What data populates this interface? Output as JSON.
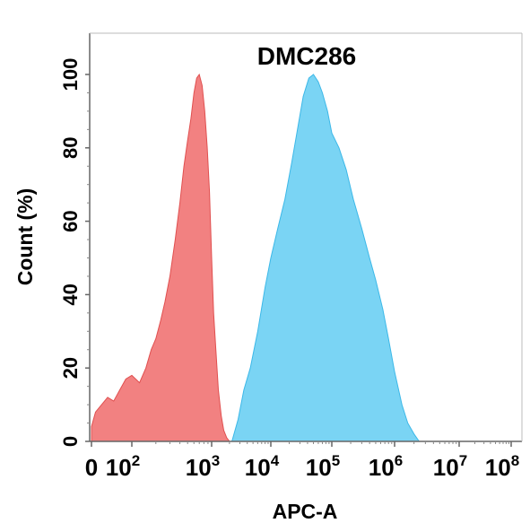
{
  "chart_data": {
    "type": "area",
    "title": "DMC286",
    "xlabel": "APC-A",
    "ylabel": "Count  (%)",
    "x_scale": "biexponential",
    "xlim": [
      0,
      100000000
    ],
    "ylim": [
      0,
      100
    ],
    "grid": false,
    "legend": "none",
    "x_ticks": [
      {
        "base": "0",
        "exp": ""
      },
      {
        "base": "10",
        "exp": "2"
      },
      {
        "base": "10",
        "exp": "3"
      },
      {
        "base": "10",
        "exp": "4"
      },
      {
        "base": "10",
        "exp": "5"
      },
      {
        "base": "10",
        "exp": "6"
      },
      {
        "base": "10",
        "exp": "7"
      },
      {
        "base": "10",
        "exp": "8"
      }
    ],
    "y_ticks": [
      "0",
      "20",
      "40",
      "60",
      "80",
      "100"
    ],
    "series": [
      {
        "color": "#F07070",
        "stroke": "#E05050",
        "points": [
          [
            0,
            4
          ],
          [
            10,
            8
          ],
          [
            25,
            10
          ],
          [
            40,
            12
          ],
          [
            55,
            11
          ],
          [
            70,
            14
          ],
          [
            85,
            17
          ],
          [
            100,
            18
          ],
          [
            125,
            16
          ],
          [
            150,
            20
          ],
          [
            175,
            25
          ],
          [
            200,
            28
          ],
          [
            230,
            33
          ],
          [
            260,
            38
          ],
          [
            300,
            45
          ],
          [
            350,
            55
          ],
          [
            400,
            65
          ],
          [
            450,
            75
          ],
          [
            500,
            82
          ],
          [
            550,
            88
          ],
          [
            600,
            95
          ],
          [
            650,
            99
          ],
          [
            700,
            100
          ],
          [
            760,
            97
          ],
          [
            820,
            90
          ],
          [
            880,
            80
          ],
          [
            940,
            68
          ],
          [
            1000,
            50
          ],
          [
            1080,
            35
          ],
          [
            1180,
            25
          ],
          [
            1300,
            14
          ],
          [
            1450,
            7
          ],
          [
            1600,
            3
          ],
          [
            1800,
            1
          ],
          [
            2000,
            0
          ]
        ]
      },
      {
        "color": "#5DCBF2",
        "stroke": "#3CB8E8",
        "points": [
          [
            2200,
            0
          ],
          [
            2800,
            6
          ],
          [
            3500,
            14
          ],
          [
            4500,
            20
          ],
          [
            6000,
            30
          ],
          [
            8000,
            42
          ],
          [
            10000,
            50
          ],
          [
            13000,
            58
          ],
          [
            17000,
            66
          ],
          [
            22000,
            76
          ],
          [
            28000,
            86
          ],
          [
            34000,
            94
          ],
          [
            42000,
            99
          ],
          [
            50000,
            100
          ],
          [
            60000,
            98
          ],
          [
            70000,
            95
          ],
          [
            85000,
            90
          ],
          [
            100000,
            84
          ],
          [
            130000,
            80
          ],
          [
            170000,
            74
          ],
          [
            220000,
            66
          ],
          [
            300000,
            58
          ],
          [
            400000,
            50
          ],
          [
            500000,
            44
          ],
          [
            650000,
            36
          ],
          [
            800000,
            28
          ],
          [
            1000000,
            19
          ],
          [
            1300000,
            10
          ],
          [
            1600000,
            5
          ],
          [
            2000000,
            2
          ],
          [
            2400000,
            0
          ]
        ]
      }
    ]
  }
}
